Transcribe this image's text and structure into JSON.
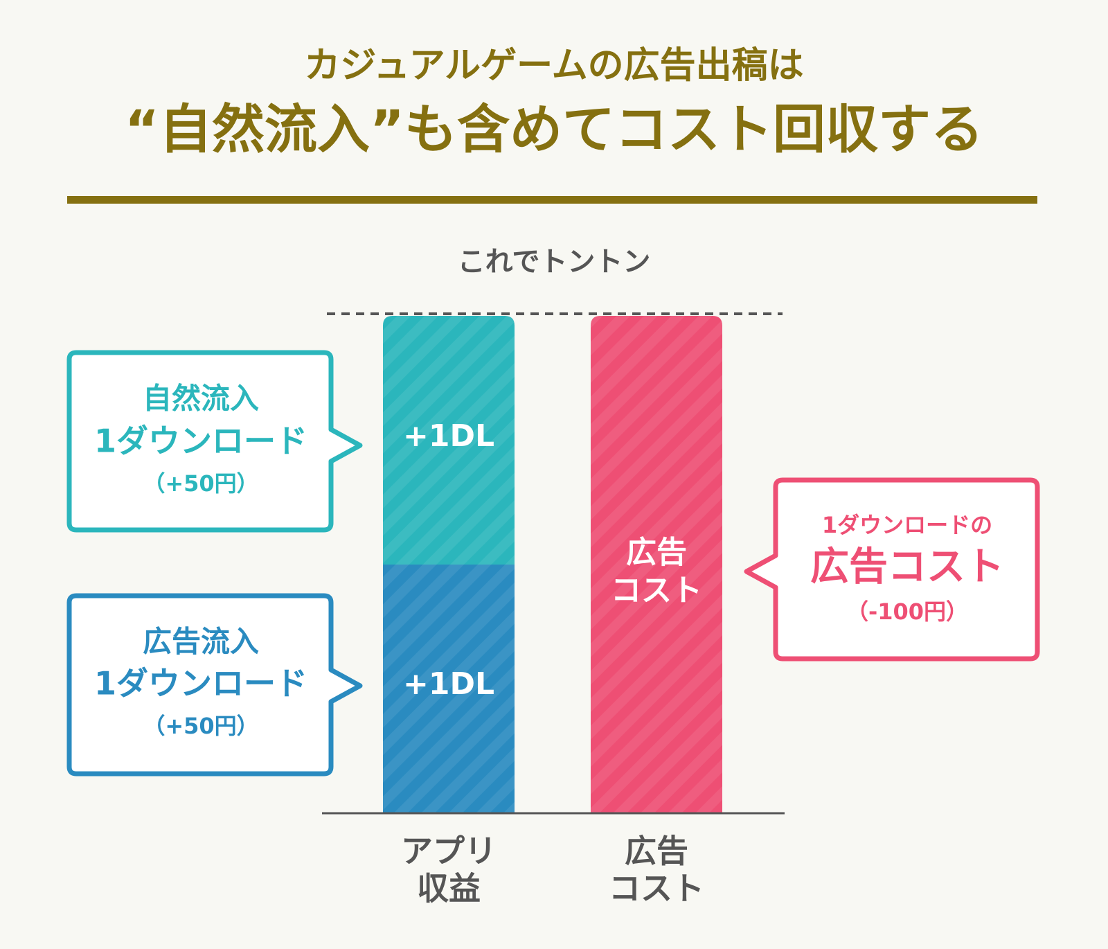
{
  "header": {
    "line1": "カジュアルゲームの広告出稿は",
    "line2": "“自然流入”も含めてコスト回収する"
  },
  "chart": {
    "balance_label": "これでトントン",
    "bars": [
      {
        "label_lines": [
          "アプリ",
          "収益"
        ],
        "segments": [
          {
            "label": "+1DL"
          },
          {
            "label": "+1DL"
          }
        ]
      },
      {
        "label_lines": [
          "広告",
          "コスト"
        ],
        "inner_lines": [
          "広告",
          "コスト"
        ]
      }
    ]
  },
  "callouts": [
    {
      "lines": [
        "自然流入",
        "1ダウンロード",
        "（+50円）"
      ]
    },
    {
      "lines": [
        "広告流入",
        "1ダウンロード",
        "（+50円）"
      ]
    },
    {
      "lines": [
        "1ダウンロードの",
        "広告コスト",
        "（-100円）"
      ]
    }
  ]
}
